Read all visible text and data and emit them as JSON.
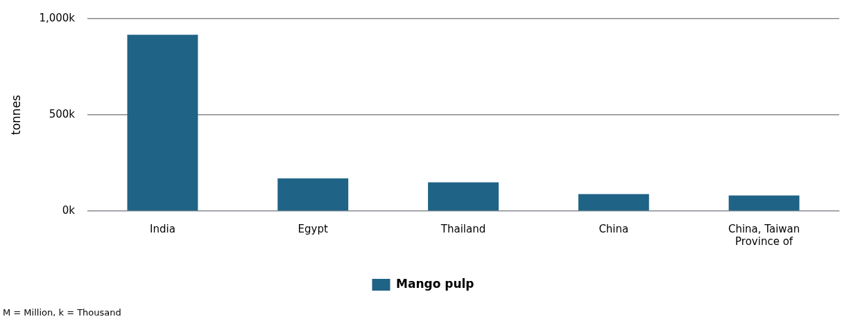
{
  "chart_data": {
    "type": "bar",
    "ylabel": "tonnes",
    "categories": [
      "India",
      "Egypt",
      "Thailand",
      "China",
      "China, Taiwan Province of"
    ],
    "series": [
      {
        "name": "Mango pulp",
        "color": "#1f6386",
        "values": [
          916000,
          170000,
          149000,
          88000,
          81000
        ]
      }
    ],
    "ylim": [
      0,
      1000000
    ],
    "yticks": [
      {
        "value": 0,
        "label": "0k"
      },
      {
        "value": 500000,
        "label": "500k"
      },
      {
        "value": 1000000,
        "label": "1,000k"
      }
    ],
    "grid": "y",
    "legend": "bottom",
    "annotations": [
      "M = Million, k = Thousand"
    ]
  }
}
